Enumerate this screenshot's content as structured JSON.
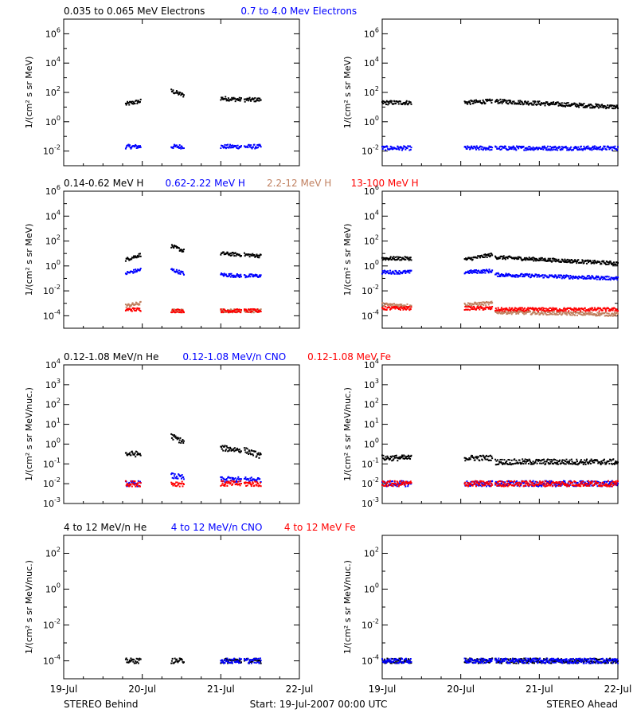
{
  "chart_data": {
    "type": "scatter",
    "panel_rows": [
      {
        "ylabel": "1/(cm² s sr MeV)",
        "ylim_log10": [
          -3,
          7
        ],
        "yticks": [
          -2,
          0,
          2,
          4,
          6
        ],
        "titles": [
          {
            "text": "0.035 to 0.065 MeV Electrons",
            "color": "#000000"
          },
          {
            "text": "0.7 to 4.0 Mev Electrons",
            "color": "#0000ff"
          }
        ],
        "series": [
          {
            "color": "#000000",
            "left": {
              "segments": [
                [
                  0.79,
                  0.98,
                  1.2,
                  1.4
                ],
                [
                  1.37,
                  1.53,
                  2.1,
                  1.8
                ],
                [
                  2.0,
                  2.26,
                  1.6,
                  1.5
                ],
                [
                  2.3,
                  2.51,
                  1.5,
                  1.5
                ]
              ]
            },
            "right": {
              "segments": [
                [
                  0.0,
                  0.37,
                  1.3,
                  1.3
                ],
                [
                  1.05,
                  1.4,
                  1.3,
                  1.4
                ],
                [
                  1.44,
                  3.0,
                  1.4,
                  1.0
                ]
              ]
            }
          },
          {
            "color": "#0000ff",
            "left": {
              "segments": [
                [
                  0.79,
                  0.98,
                  -1.7,
                  -1.7
                ],
                [
                  1.37,
                  1.53,
                  -1.7,
                  -1.7
                ],
                [
                  2.0,
                  2.26,
                  -1.7,
                  -1.7
                ],
                [
                  2.3,
                  2.51,
                  -1.7,
                  -1.7
                ]
              ]
            },
            "right": {
              "segments": [
                [
                  0.0,
                  0.37,
                  -1.8,
                  -1.8
                ],
                [
                  1.05,
                  1.4,
                  -1.8,
                  -1.8
                ],
                [
                  1.44,
                  3.0,
                  -1.8,
                  -1.8
                ]
              ]
            }
          }
        ]
      },
      {
        "ylabel": "1/(cm² s sr MeV)",
        "ylim_log10": [
          -5,
          6
        ],
        "yticks": [
          -4,
          -2,
          0,
          2,
          4,
          6
        ],
        "titles": [
          {
            "text": "0.14-0.62 MeV H",
            "color": "#000000"
          },
          {
            "text": "0.62-2.22 MeV H",
            "color": "#0000ff"
          },
          {
            "text": "2.2-12 MeV H",
            "color": "#c08060"
          },
          {
            "text": "13-100 MeV H",
            "color": "#ff0000"
          }
        ],
        "series": [
          {
            "color": "#000000",
            "left": {
              "segments": [
                [
                  0.79,
                  0.98,
                  0.5,
                  0.9
                ],
                [
                  1.37,
                  1.53,
                  1.6,
                  1.2
                ],
                [
                  2.0,
                  2.26,
                  1.0,
                  0.9
                ],
                [
                  2.3,
                  2.51,
                  0.9,
                  0.8
                ]
              ]
            },
            "right": {
              "segments": [
                [
                  0.0,
                  0.37,
                  0.6,
                  0.6
                ],
                [
                  1.05,
                  1.4,
                  0.5,
                  0.9
                ],
                [
                  1.44,
                  3.0,
                  0.7,
                  0.2
                ]
              ]
            }
          },
          {
            "color": "#0000ff",
            "left": {
              "segments": [
                [
                  0.79,
                  0.98,
                  -0.6,
                  -0.3
                ],
                [
                  1.37,
                  1.53,
                  -0.3,
                  -0.6
                ],
                [
                  2.0,
                  2.26,
                  -0.7,
                  -0.8
                ],
                [
                  2.3,
                  2.51,
                  -0.8,
                  -0.8
                ]
              ]
            },
            "right": {
              "segments": [
                [
                  0.0,
                  0.37,
                  -0.5,
                  -0.5
                ],
                [
                  1.05,
                  1.4,
                  -0.5,
                  -0.4
                ],
                [
                  1.44,
                  3.0,
                  -0.7,
                  -1.0
                ]
              ]
            }
          },
          {
            "color": "#c08060",
            "left": {
              "segments": [
                [
                  0.79,
                  0.98,
                  -3.2,
                  -3.0
                ],
                [
                  1.37,
                  1.53,
                  -3.6,
                  -3.6
                ],
                [
                  2.0,
                  2.26,
                  -3.6,
                  -3.6
                ],
                [
                  2.3,
                  2.51,
                  -3.6,
                  -3.6
                ]
              ]
            },
            "right": {
              "segments": [
                [
                  0.0,
                  0.37,
                  -3.1,
                  -3.2
                ],
                [
                  1.05,
                  1.4,
                  -3.1,
                  -3.0
                ],
                [
                  1.44,
                  3.0,
                  -3.7,
                  -3.9
                ]
              ]
            }
          },
          {
            "color": "#ff0000",
            "left": {
              "segments": [
                [
                  0.79,
                  0.98,
                  -3.5,
                  -3.5
                ],
                [
                  1.37,
                  1.53,
                  -3.6,
                  -3.6
                ],
                [
                  2.0,
                  2.26,
                  -3.6,
                  -3.6
                ],
                [
                  2.3,
                  2.51,
                  -3.6,
                  -3.6
                ]
              ]
            },
            "right": {
              "segments": [
                [
                  0.0,
                  0.37,
                  -3.4,
                  -3.4
                ],
                [
                  1.05,
                  1.4,
                  -3.4,
                  -3.4
                ],
                [
                  1.44,
                  3.0,
                  -3.5,
                  -3.5
                ]
              ]
            }
          }
        ]
      },
      {
        "ylabel": "1/(cm² s sr MeV/nuc.)",
        "ylim_log10": [
          -3,
          4
        ],
        "yticks": [
          -3,
          -2,
          -1,
          0,
          1,
          2,
          3,
          4
        ],
        "titles": [
          {
            "text": "0.12-1.08 MeV/n He",
            "color": "#000000"
          },
          {
            "text": "0.12-1.08 MeV/n CNO",
            "color": "#0000ff"
          },
          {
            "text": "0.12-1.08 MeV Fe",
            "color": "#ff0000"
          }
        ],
        "series": [
          {
            "color": "#000000",
            "left": {
              "segments": [
                [
                  0.79,
                  0.98,
                  -0.5,
                  -0.5
                ],
                [
                  1.37,
                  1.53,
                  0.4,
                  0.1
                ],
                [
                  2.0,
                  2.26,
                  -0.2,
                  -0.3
                ],
                [
                  2.3,
                  2.51,
                  -0.3,
                  -0.6
                ]
              ]
            },
            "right": {
              "segments": [
                [
                  0.0,
                  0.37,
                  -0.7,
                  -0.7
                ],
                [
                  1.05,
                  1.4,
                  -0.7,
                  -0.7
                ],
                [
                  1.44,
                  3.0,
                  -0.9,
                  -0.9
                ]
              ]
            }
          },
          {
            "color": "#0000ff",
            "left": {
              "segments": [
                [
                  0.79,
                  0.98,
                  -2.0,
                  -2.0
                ],
                [
                  1.37,
                  1.53,
                  -1.6,
                  -1.7
                ],
                [
                  2.0,
                  2.26,
                  -1.8,
                  -1.8
                ],
                [
                  2.3,
                  2.51,
                  -1.8,
                  -1.8
                ]
              ]
            },
            "right": {
              "segments": [
                [
                  0.0,
                  0.37,
                  -2.0,
                  -2.0
                ],
                [
                  1.05,
                  1.4,
                  -2.0,
                  -2.0
                ],
                [
                  1.44,
                  3.0,
                  -2.0,
                  -2.0
                ]
              ]
            }
          },
          {
            "color": "#ff0000",
            "left": {
              "segments": [
                [
                  0.79,
                  0.98,
                  -2.0,
                  -2.0
                ],
                [
                  1.37,
                  1.53,
                  -2.0,
                  -2.0
                ],
                [
                  2.0,
                  2.26,
                  -2.0,
                  -2.0
                ],
                [
                  2.3,
                  2.51,
                  -2.0,
                  -2.0
                ]
              ]
            },
            "right": {
              "segments": [
                [
                  0.0,
                  0.37,
                  -2.0,
                  -2.0
                ],
                [
                  1.05,
                  1.4,
                  -2.0,
                  -2.0
                ],
                [
                  1.44,
                  3.0,
                  -2.0,
                  -2.0
                ]
              ]
            }
          }
        ]
      },
      {
        "ylabel": "1/(cm² s sr MeV/nuc.)",
        "ylim_log10": [
          -5,
          3
        ],
        "yticks": [
          -4,
          -2,
          0,
          2
        ],
        "titles": [
          {
            "text": "4 to 12 MeV/n He",
            "color": "#000000"
          },
          {
            "text": "4 to 12 MeV/n CNO",
            "color": "#0000ff"
          },
          {
            "text": "4 to 12 MeV Fe",
            "color": "#ff0000"
          }
        ],
        "series": [
          {
            "color": "#000000",
            "left": {
              "segments": [
                [
                  0.79,
                  0.98,
                  -4.0,
                  -4.0
                ],
                [
                  1.37,
                  1.53,
                  -4.0,
                  -4.0
                ],
                [
                  2.0,
                  2.26,
                  -4.0,
                  -4.0
                ],
                [
                  2.3,
                  2.51,
                  -4.0,
                  -4.0
                ]
              ]
            },
            "right": {
              "segments": [
                [
                  0.0,
                  0.37,
                  -4.0,
                  -4.0
                ],
                [
                  1.05,
                  1.4,
                  -4.0,
                  -4.0
                ],
                [
                  1.44,
                  3.0,
                  -4.0,
                  -4.0
                ]
              ]
            }
          },
          {
            "color": "#0000ff",
            "left": {
              "segments": [
                [
                  2.0,
                  2.26,
                  -4.0,
                  -4.0
                ],
                [
                  2.3,
                  2.51,
                  -4.0,
                  -4.0
                ]
              ]
            },
            "right": {
              "segments": [
                [
                  0.0,
                  0.37,
                  -4.0,
                  -4.0
                ],
                [
                  1.05,
                  1.4,
                  -4.0,
                  -4.0
                ],
                [
                  1.44,
                  3.0,
                  -4.0,
                  -4.0
                ]
              ]
            }
          }
        ]
      }
    ],
    "x_ticks": [
      "19-Jul",
      "20-Jul",
      "21-Jul",
      "22-Jul"
    ],
    "xlim_days": [
      0,
      3
    ],
    "footer": {
      "left": "STEREO Behind",
      "center": "Start: 19-Jul-2007 00:00 UTC",
      "right": "STEREO Ahead"
    }
  }
}
